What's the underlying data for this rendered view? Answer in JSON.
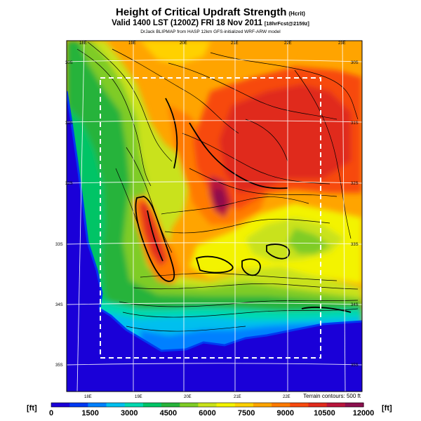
{
  "header": {
    "title": "Height of Critical Updraft Strength",
    "title_units": "(Hcrit)",
    "valid": "Valid 1400 LST (1200Z) FRI 18 Nov 2011",
    "forecast": "[18hrFcst@2159z]",
    "credit": "DrJack BLIPMAP from HASP 12km GFS-initialized WRF-ARW model"
  },
  "map": {
    "top_lon_labels": [
      "18E",
      "19E",
      "20E",
      "21E",
      "22E",
      "23E"
    ],
    "bottom_lon_labels": [
      "18E",
      "19E",
      "20E",
      "21E",
      "22E"
    ],
    "left_lat_labels": [
      "30S",
      "31S",
      "32S",
      "33S",
      "34S",
      "35S"
    ],
    "right_lat_labels": [
      "30S",
      "31S",
      "32S",
      "33S",
      "34S",
      "35S"
    ],
    "terrain_note": "Terrain contours: 500 ft",
    "inner_window": "dashed"
  },
  "legend": {
    "unit_left": "[ft]",
    "unit_right": "[ft]",
    "ticks": [
      "0",
      "1500",
      "3000",
      "4500",
      "6000",
      "7500",
      "9000",
      "10500",
      "12000"
    ],
    "colors": [
      "#1a00d8",
      "#0039f2",
      "#0080ff",
      "#00bfee",
      "#00d9b0",
      "#00c466",
      "#27b33a",
      "#7fcc25",
      "#c9e21a",
      "#f3f300",
      "#ffd100",
      "#ffa400",
      "#ff7a00",
      "#f74a0f",
      "#e02a1c",
      "#b8153c",
      "#8b0f4e"
    ]
  }
}
